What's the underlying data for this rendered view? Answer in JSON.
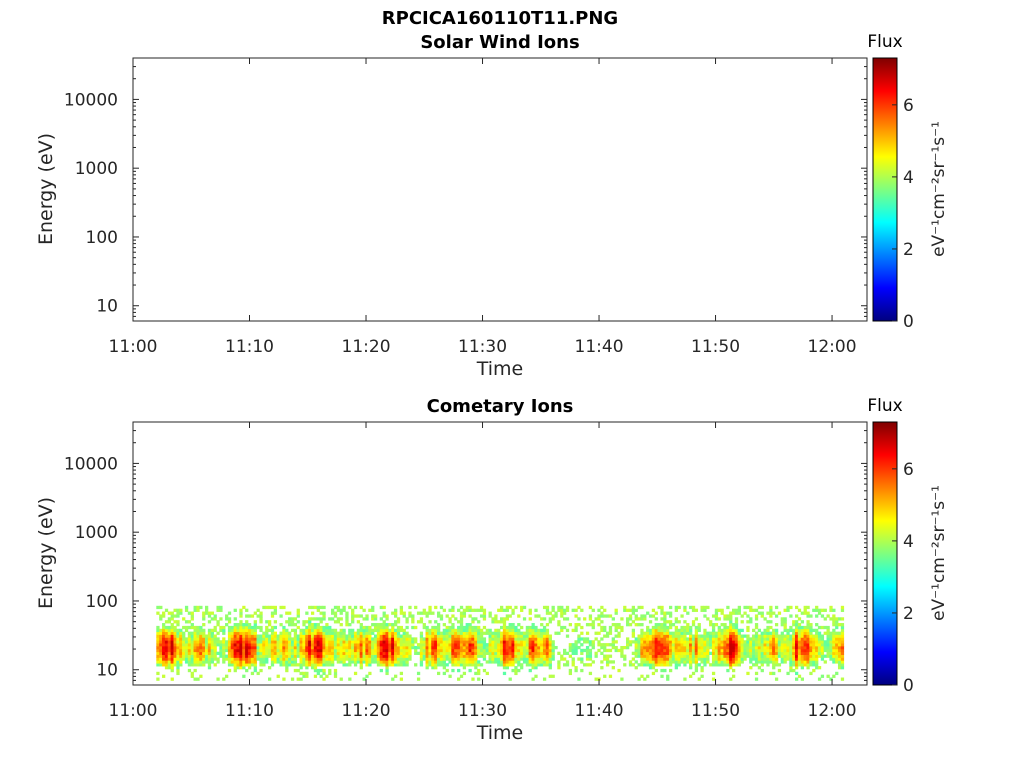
{
  "figure_title": "RPCICA160110T11.PNG",
  "chart_data": [
    {
      "type": "heatmap",
      "title": "Solar Wind Ions",
      "xlabel": "Time",
      "ylabel": "Energy (eV)",
      "yscale": "log",
      "ylim": [
        6,
        40000
      ],
      "xlim": [
        "11:00",
        "12:03"
      ],
      "x_tick_labels": [
        "11:00",
        "11:10",
        "11:20",
        "11:30",
        "11:40",
        "11:50",
        "12:00"
      ],
      "y_tick_labels": [
        "10",
        "100",
        "1000",
        "10000"
      ],
      "colorbar": {
        "title": "Flux",
        "label": "eV⁻¹cm⁻²sr⁻¹s⁻¹",
        "range": [
          0,
          7.3
        ],
        "tick_labels": [
          "0",
          "2",
          "4",
          "6"
        ],
        "colormap": "jet"
      },
      "data": "empty"
    },
    {
      "type": "heatmap",
      "title": "Cometary Ions",
      "xlabel": "Time",
      "ylabel": "Energy (eV)",
      "yscale": "log",
      "ylim": [
        6,
        40000
      ],
      "xlim": [
        "11:00",
        "12:03"
      ],
      "x_tick_labels": [
        "11:00",
        "11:10",
        "11:20",
        "11:30",
        "11:40",
        "11:50",
        "12:00"
      ],
      "y_tick_labels": [
        "10",
        "100",
        "1000",
        "10000"
      ],
      "colorbar": {
        "title": "Flux",
        "label": "eV⁻¹cm⁻²sr⁻¹s⁻¹",
        "range": [
          0,
          7.3
        ],
        "tick_labels": [
          "0",
          "2",
          "4",
          "6"
        ],
        "colormap": "jet"
      },
      "data_time_range": [
        "11:02",
        "12:01"
      ],
      "data_energy_range_eV": [
        7,
        85
      ],
      "peak_energy_eV": 20,
      "peak_flux": 6.5,
      "low_activity_interval": [
        "11:36",
        "11:43"
      ]
    }
  ],
  "colors": {
    "jet": [
      "#00007f",
      "#0000ff",
      "#007fff",
      "#00ffff",
      "#7fff7f",
      "#ffff00",
      "#ff7f00",
      "#ff0000",
      "#7f0000"
    ]
  }
}
